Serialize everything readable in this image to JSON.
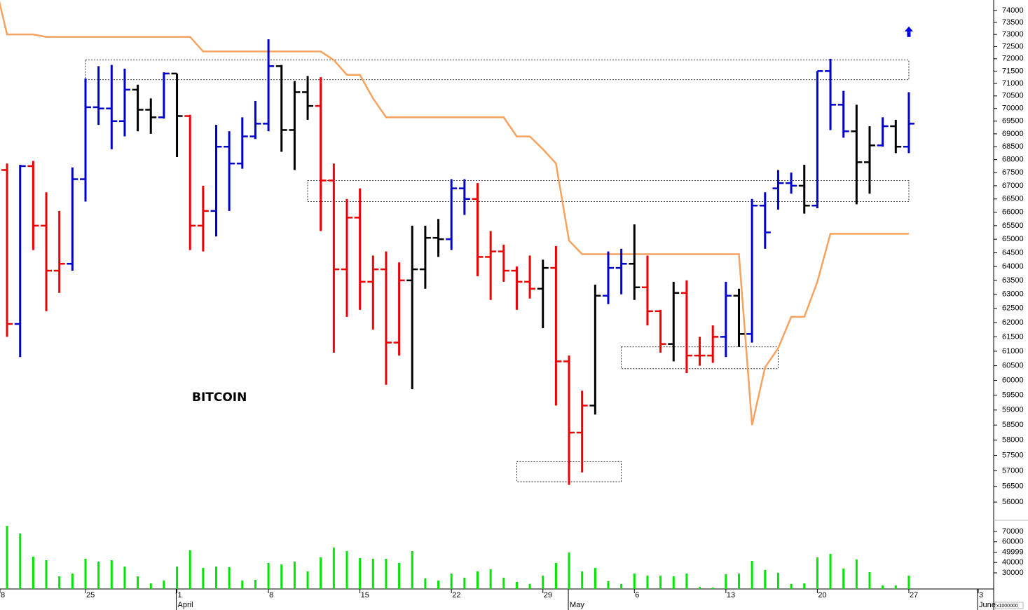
{
  "chart_data": {
    "type": "ohlc",
    "title": "BITCOIN",
    "log_scale": true,
    "categories": [
      "8",
      null,
      null,
      null,
      null,
      null,
      null,
      "25",
      null,
      null,
      null,
      null,
      null,
      null,
      "1",
      null,
      null,
      null,
      null,
      null,
      null,
      "8",
      null,
      null,
      null,
      null,
      null,
      null,
      "15",
      null,
      null,
      null,
      null,
      null,
      null,
      "22",
      null,
      null,
      null,
      null,
      null,
      null,
      "29",
      null,
      null,
      null,
      null,
      null,
      null,
      "6",
      null,
      null,
      null,
      null,
      null,
      null,
      "13",
      null,
      null,
      null,
      null,
      null,
      null,
      "20",
      null,
      null,
      null,
      null,
      null,
      null,
      "27",
      null,
      null,
      null,
      null,
      null,
      null,
      "3"
    ],
    "months": [
      null,
      null,
      null,
      null,
      null,
      null,
      null,
      null,
      null,
      null,
      null,
      null,
      null,
      null,
      "April",
      null,
      null,
      null,
      null,
      null,
      null,
      null,
      null,
      null,
      null,
      null,
      null,
      null,
      null,
      null,
      null,
      null,
      null,
      null,
      null,
      null,
      null,
      null,
      null,
      null,
      null,
      null,
      null,
      null,
      "May",
      null,
      null,
      null,
      null,
      null,
      null,
      null,
      null,
      null,
      null,
      null,
      null,
      null,
      null,
      null,
      null,
      null,
      null,
      null,
      null,
      null,
      null,
      null,
      null,
      null,
      null,
      null,
      null,
      null,
      null,
      null,
      null,
      "June"
    ],
    "open": [
      null,
      67600,
      61950,
      67750,
      65500,
      63850,
      64100,
      67250,
      70050,
      70000,
      69500,
      70750,
      69950,
      69650,
      71400,
      69700,
      65500,
      66050,
      68500,
      67850,
      68900,
      69400,
      71700,
      69150,
      70650,
      70100,
      67200,
      63900,
      65800,
      63450,
      63900,
      61300,
      63500,
      63900,
      65050,
      65000,
      66900,
      66500,
      64350,
      64550,
      63850,
      63450,
      63200,
      63950,
      60650,
      58250,
      59150,
      62950,
      63950,
      64100,
      63250,
      62400,
      61250,
      63050,
      60850,
      60850,
      61500,
      62950,
      61600,
      66250,
      66900,
      67100,
      67000,
      66250,
      71500,
      70150,
      69100,
      67900,
      68550,
      69300,
      68500,
      null,
      null,
      null,
      null,
      null,
      null,
      null
    ],
    "high": [
      null,
      67850,
      67800,
      67950,
      66750,
      66050,
      67700,
      71200,
      71700,
      71750,
      71600,
      70950,
      70400,
      71450,
      71400,
      69750,
      67000,
      69350,
      69100,
      69650,
      70300,
      72800,
      71750,
      71100,
      71300,
      71250,
      67850,
      66500,
      66900,
      64400,
      64550,
      64150,
      65500,
      65500,
      65750,
      67250,
      67250,
      67100,
      65300,
      64800,
      64000,
      64400,
      64250,
      64750,
      60850,
      59650,
      63350,
      64550,
      64650,
      65550,
      64400,
      62450,
      63450,
      63500,
      61500,
      61900,
      63450,
      63200,
      66500,
      66750,
      67600,
      67500,
      67800,
      71500,
      72000,
      70700,
      70150,
      69300,
      69650,
      69550,
      70650,
      null,
      null,
      null,
      null,
      null,
      null,
      null
    ],
    "low": [
      null,
      61500,
      60800,
      64600,
      62400,
      63050,
      63850,
      66400,
      69350,
      68400,
      68900,
      69100,
      69000,
      69600,
      68100,
      64600,
      64550,
      65100,
      66050,
      67650,
      68800,
      69100,
      68300,
      67600,
      69550,
      65300,
      60950,
      62200,
      62450,
      61750,
      59850,
      60850,
      59700,
      63200,
      64350,
      64600,
      65900,
      63650,
      62800,
      63450,
      62450,
      62850,
      61800,
      59150,
      56550,
      56950,
      58850,
      62650,
      63000,
      62800,
      61900,
      60950,
      60650,
      60250,
      60500,
      60600,
      60800,
      61150,
      61300,
      64650,
      66100,
      66700,
      65950,
      66150,
      69150,
      68850,
      66300,
      66700,
      68500,
      68250,
      68250,
      null,
      null,
      null,
      null,
      null,
      null,
      null
    ],
    "close": [
      null,
      61950,
      67750,
      65500,
      63850,
      64100,
      67250,
      70050,
      70000,
      69500,
      70750,
      69950,
      69650,
      71400,
      69700,
      65500,
      66050,
      68500,
      67850,
      68900,
      69400,
      71700,
      69150,
      70650,
      70100,
      67200,
      63900,
      65800,
      63450,
      63900,
      61300,
      63500,
      63900,
      65050,
      65000,
      66900,
      66500,
      64350,
      64550,
      63850,
      63450,
      63200,
      63950,
      60650,
      58250,
      59150,
      62950,
      63950,
      64100,
      63250,
      62400,
      61250,
      63050,
      60850,
      60850,
      61500,
      62950,
      61600,
      66250,
      65250,
      67100,
      67000,
      66250,
      71500,
      70150,
      69100,
      67900,
      68550,
      69300,
      68500,
      69400,
      null,
      null,
      null,
      null,
      null,
      null,
      null
    ],
    "colors": [
      null,
      "#ee0000",
      "#0000cc",
      "#ee0000",
      "#ee0000",
      "#ee0000",
      "#0000cc",
      "#0000cc",
      "#0000cc",
      "#0000cc",
      "#0000cc",
      "#000000",
      "#000000",
      "#0000cc",
      "#000000",
      "#ee0000",
      "#ee0000",
      "#0000cc",
      "#0000cc",
      "#0000cc",
      "#0000cc",
      "#0000cc",
      "#000000",
      "#000000",
      "#000000",
      "#ee0000",
      "#ee0000",
      "#ee0000",
      "#ee0000",
      "#ee0000",
      "#ee0000",
      "#ee0000",
      "#000000",
      "#000000",
      "#000000",
      "#0000cc",
      "#0000cc",
      "#ee0000",
      "#ee0000",
      "#ee0000",
      "#ee0000",
      "#ee0000",
      "#000000",
      "#ee0000",
      "#ee0000",
      "#ee0000",
      "#000000",
      "#0000cc",
      "#0000cc",
      "#000000",
      "#ee0000",
      "#ee0000",
      "#000000",
      "#ee0000",
      "#ee0000",
      "#ee0000",
      "#0000cc",
      "#000000",
      "#0000cc",
      "#0000cc",
      "#0000cc",
      "#0000cc",
      "#000000",
      "#0000cc",
      "#0000cc",
      "#0000cc",
      "#000000",
      "#000000",
      "#0000cc",
      "#000000",
      "#0000cc",
      null,
      null,
      null,
      null,
      null,
      null,
      null
    ],
    "ylim": [
      55470,
      74440
    ],
    "yticks": [
      74000,
      73500,
      73000,
      72500,
      72000,
      71500,
      71000,
      70500,
      70000,
      69500,
      69000,
      68500,
      68000,
      67500,
      67000,
      66500,
      66000,
      65500,
      65000,
      64500,
      64000,
      63500,
      63000,
      62500,
      62000,
      61500,
      61000,
      60500,
      60000,
      59500,
      59000,
      58500,
      58000,
      57500,
      57000,
      56500,
      56000
    ],
    "stop_line": {
      "color": "#f7a25e",
      "values": [
        75300,
        73000,
        73000,
        73000,
        72900,
        72900,
        72900,
        72900,
        72900,
        72900,
        72900,
        72900,
        72900,
        72900,
        72900,
        72900,
        72300,
        72300,
        72300,
        72300,
        72300,
        72300,
        72300,
        72300,
        72300,
        72300,
        71950,
        71350,
        71350,
        70400,
        69650,
        69650,
        69650,
        69650,
        69650,
        69650,
        69650,
        69650,
        69650,
        69650,
        68900,
        68900,
        68400,
        67850,
        64950,
        64450,
        64450,
        64450,
        64450,
        64450,
        64450,
        64450,
        64450,
        64450,
        64450,
        64450,
        64450,
        64450,
        58500,
        60450,
        61100,
        62200,
        62200,
        63450,
        65200,
        65200,
        65200,
        65200,
        65200,
        65200,
        65200,
        null,
        null,
        null,
        null,
        null,
        null,
        null
      ]
    },
    "boxes": [
      {
        "from": 7,
        "to": 70,
        "low": 71150,
        "high": 71950
      },
      {
        "from": 24,
        "to": 70,
        "low": 66400,
        "high": 67200
      },
      {
        "from": 48,
        "to": 60,
        "low": 60400,
        "high": 61150
      },
      {
        "from": 40,
        "to": 48,
        "low": 56650,
        "high": 57300
      }
    ],
    "signal": {
      "index": 70,
      "value": 73100,
      "color": "#0000ee"
    },
    "volume": {
      "color": "#00e600",
      "unit_label": "x1000000",
      "ylim": [
        14400,
        78800
      ],
      "yticks": [
        70000,
        60000,
        49999,
        40000,
        30000
      ],
      "values": [
        null,
        75400,
        68000,
        45600,
        42200,
        26600,
        29300,
        43600,
        40800,
        42200,
        36100,
        26600,
        19800,
        22500,
        36100,
        51700,
        34700,
        36100,
        35400,
        22500,
        23200,
        39500,
        38100,
        40800,
        31400,
        44900,
        54400,
        51000,
        44200,
        43600,
        43600,
        39500,
        51000,
        24600,
        22500,
        29300,
        25300,
        31400,
        33400,
        25300,
        21200,
        19200,
        27300,
        39500,
        49700,
        31400,
        34700,
        21900,
        19200,
        29300,
        27300,
        27300,
        26600,
        29300,
        16400,
        15700,
        28600,
        29300,
        41500,
        32700,
        30000,
        19200,
        19800,
        44900,
        48300,
        34100,
        42900,
        30700,
        17800,
        17800,
        27300,
        null,
        null,
        null,
        null,
        null,
        null,
        null
      ]
    }
  }
}
